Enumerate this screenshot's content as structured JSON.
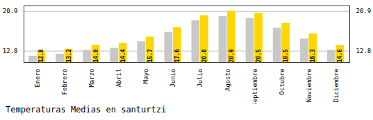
{
  "chart_data": {
    "type": "bar",
    "title": "Temperaturas Medias en santurtzi",
    "categories": [
      "Enero",
      "Febrero",
      "Marzo",
      "Abril",
      "Mayo",
      "Junio",
      "Julio",
      "Agosto",
      "Septiembre",
      "Octubre",
      "Noviembre",
      "Diciembre"
    ],
    "series": [
      {
        "color": "#C8C8C8",
        "values": [
          11.8,
          12.2,
          13.0,
          13.4,
          14.7,
          16.6,
          19.0,
          19.9,
          19.5,
          17.5,
          15.3,
          13.0
        ]
      },
      {
        "color": "#FFD700",
        "values": [
          12.8,
          13.2,
          14.0,
          14.4,
          15.7,
          17.6,
          20.0,
          20.9,
          20.5,
          18.5,
          16.3,
          14.0
        ],
        "data_labels": true,
        "value_labels": [
          "12.8",
          "13.2",
          "14.0",
          "14.4",
          "15.7",
          "17.6",
          "20.0",
          "20.9",
          "20.5",
          "18.5",
          "16.3",
          "14.0"
        ]
      }
    ],
    "ylim": [
      10.5,
      22.0
    ],
    "yticks": [
      12.8,
      20.9
    ],
    "grid": true
  }
}
